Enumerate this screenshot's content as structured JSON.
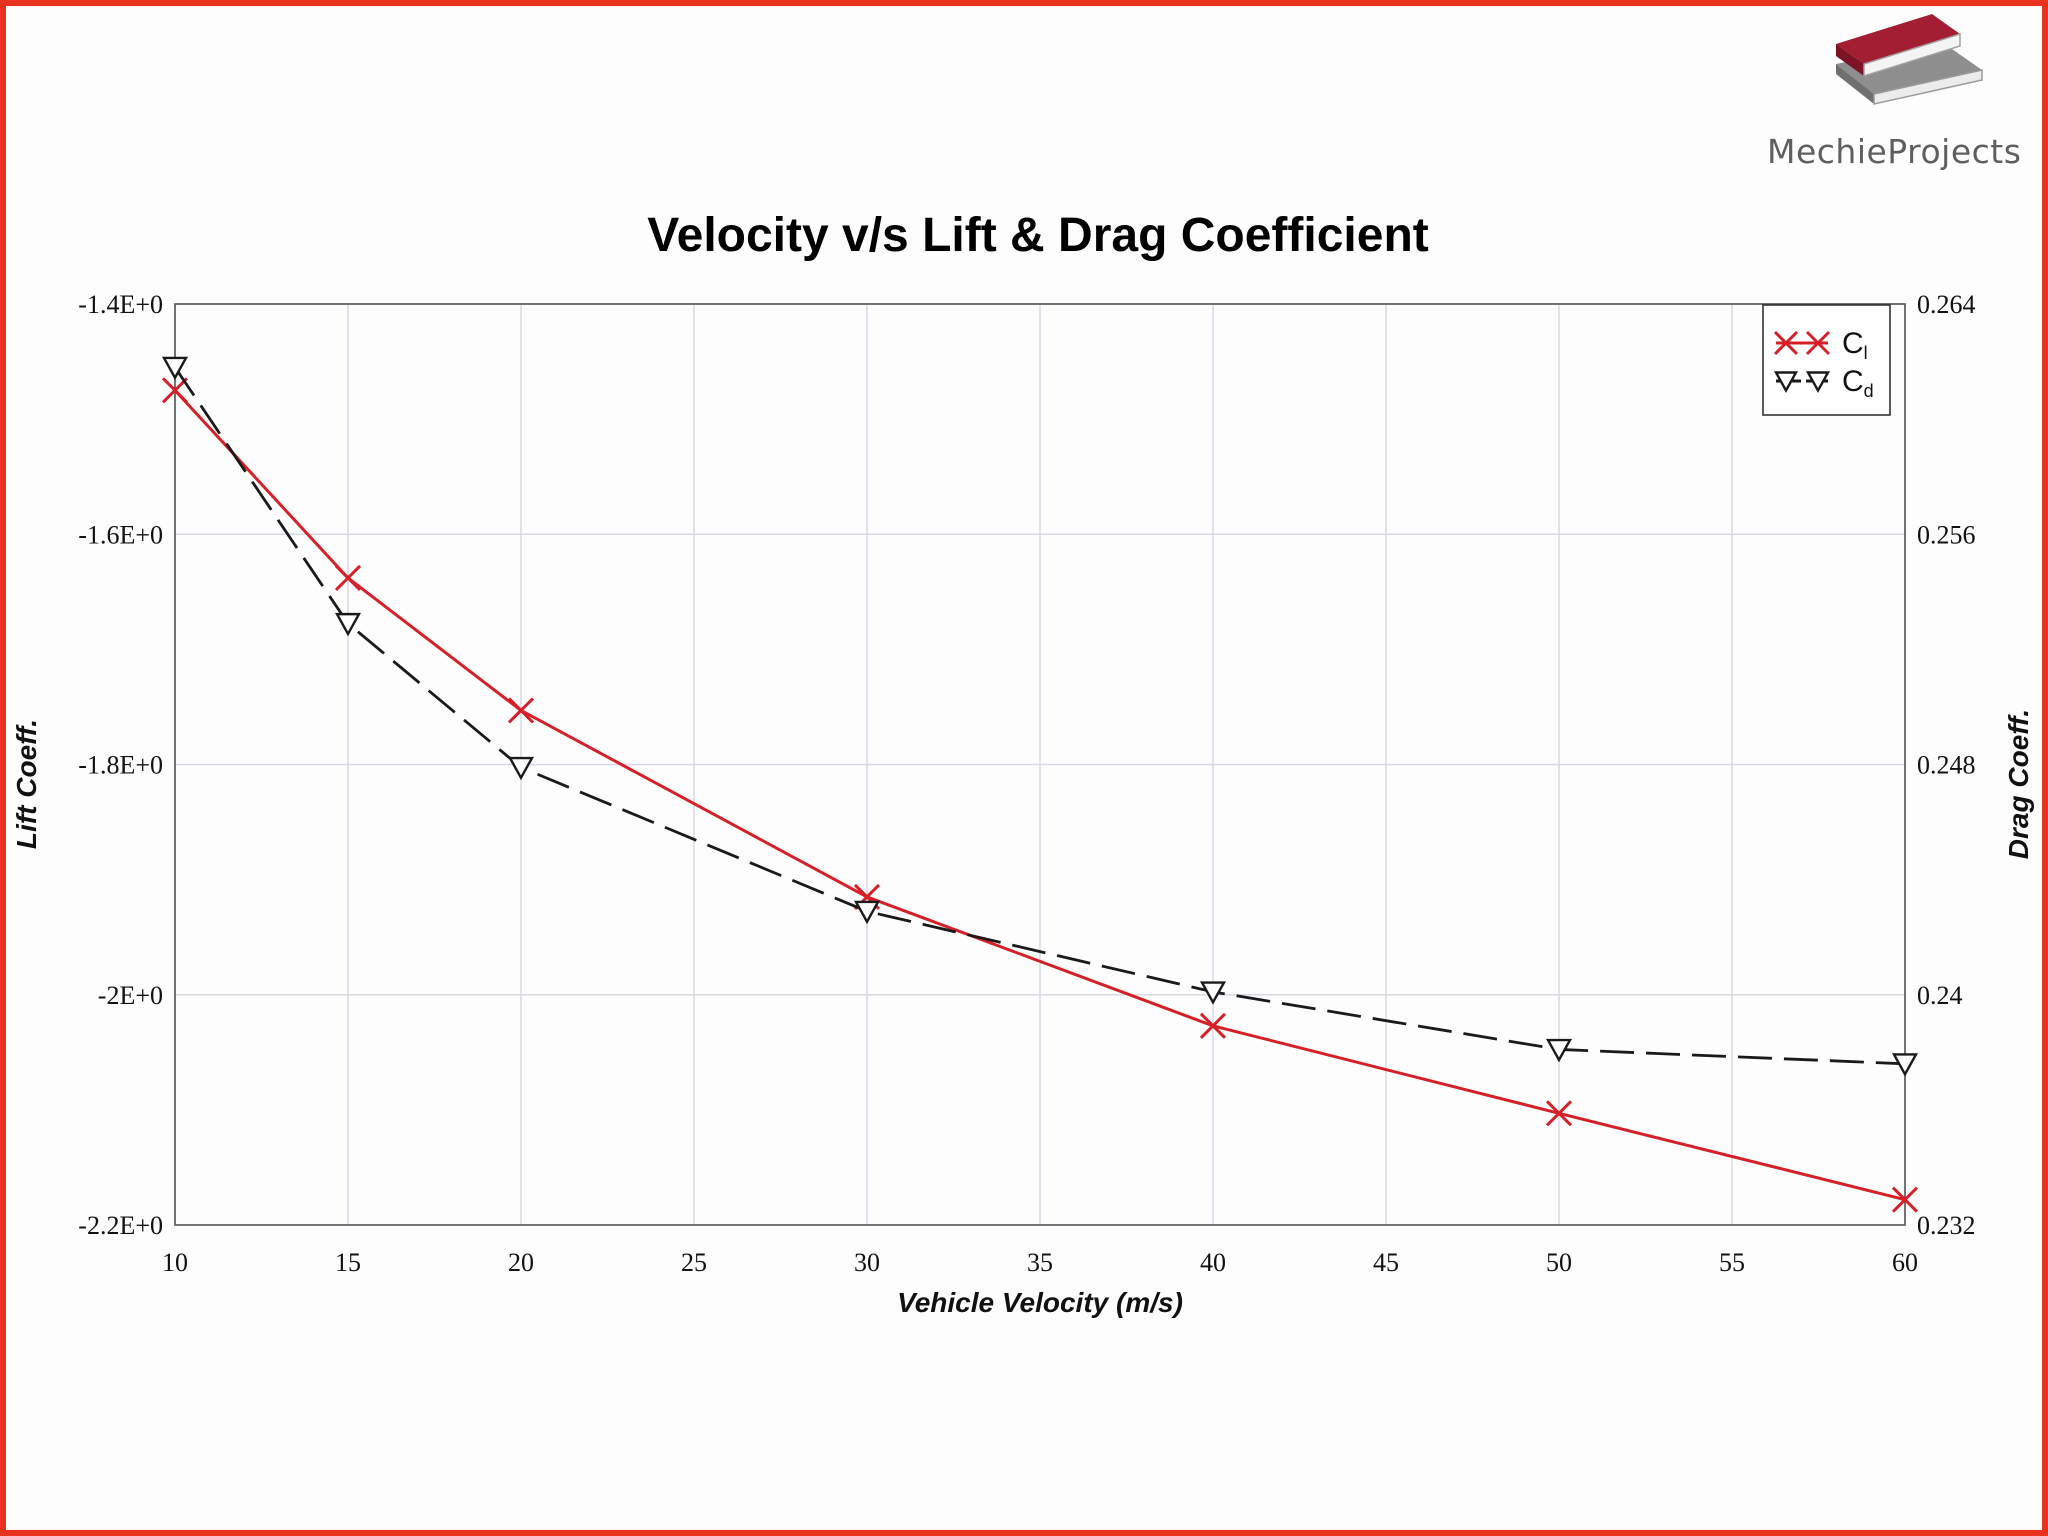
{
  "brand": {
    "name": "MechieProjects"
  },
  "colors": {
    "frame": "#e8321e",
    "cl": "#d62027",
    "cd": "#1a1a1a",
    "grid": "#d9d9e6"
  },
  "chart_data": {
    "type": "line",
    "title": "Velocity v/s Lift & Drag Coefficient",
    "xlabel": "Vehicle Velocity (m/s)",
    "ylabel_left": "Lift Coeff.",
    "ylabel_right": "Drag Coeff.",
    "xlim": [
      10,
      60
    ],
    "ylim_left": [
      -2.2,
      -1.4
    ],
    "ylim_right": [
      0.232,
      0.264
    ],
    "x_ticks": [
      "10",
      "15",
      "20",
      "25",
      "30",
      "35",
      "40",
      "45",
      "50",
      "55",
      "60"
    ],
    "y_ticks_left": [
      "-1.4E+0",
      "-1.6E+0",
      "-1.8E+0",
      "-2E+0",
      "-2.2E+0"
    ],
    "y_ticks_right": [
      "0.264",
      "0.256",
      "0.248",
      "0.24",
      "0.232"
    ],
    "grid": true,
    "legend_position": "top-right",
    "series": [
      {
        "name": "C",
        "subscript": "l",
        "axis": "left",
        "color": "#d62027",
        "line": "solid",
        "marker": "x",
        "x": [
          10,
          15,
          20,
          30,
          40,
          50,
          60
        ],
        "y": [
          -1.475,
          -1.638,
          -1.753,
          -1.915,
          -2.027,
          -2.103,
          -2.178
        ]
      },
      {
        "name": "C",
        "subscript": "d",
        "axis": "right",
        "color": "#1a1a1a",
        "line": "dashed",
        "marker": "triangle-down",
        "x": [
          10,
          15,
          20,
          30,
          40,
          50,
          60
        ],
        "y": [
          0.2618,
          0.2529,
          0.2479,
          0.2429,
          0.2401,
          0.2381,
          0.2376
        ]
      }
    ]
  }
}
